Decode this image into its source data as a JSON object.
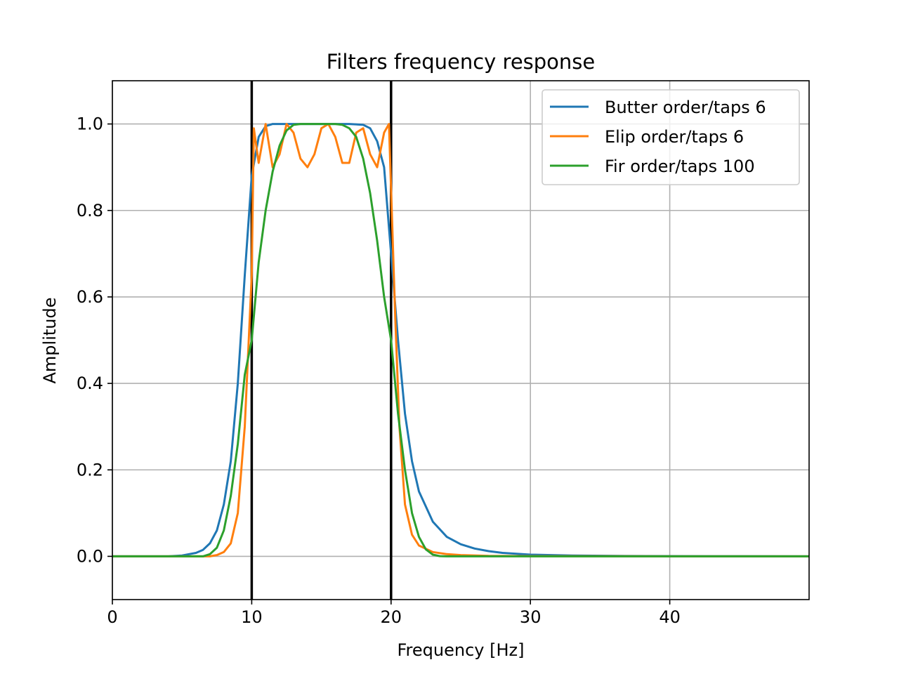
{
  "chart_data": {
    "type": "line",
    "title": "Filters frequency response",
    "xlabel": "Frequency [Hz]",
    "ylabel": "Amplitude",
    "xlim": [
      0,
      50
    ],
    "ylim": [
      -0.1,
      1.1
    ],
    "xticks": [
      0,
      10,
      20,
      30,
      40
    ],
    "xtick_labels": [
      "0",
      "10",
      "20",
      "30",
      "40"
    ],
    "yticks": [
      0.0,
      0.2,
      0.4,
      0.6,
      0.8,
      1.0
    ],
    "ytick_labels": [
      "0.0",
      "0.2",
      "0.4",
      "0.6",
      "0.8",
      "1.0"
    ],
    "grid": true,
    "legend_position": "top-right",
    "vertical_lines": [
      10,
      20
    ],
    "series": [
      {
        "name": "Butter order/taps 6",
        "color": "#1f77b4",
        "x": [
          0,
          4,
          5,
          6,
          6.5,
          7,
          7.5,
          8,
          8.5,
          9,
          9.5,
          10,
          10.5,
          11,
          11.5,
          12,
          13,
          14,
          15,
          16,
          17,
          18,
          18.5,
          19,
          19.5,
          20,
          20.5,
          21,
          21.5,
          22,
          23,
          24,
          25,
          26,
          27,
          28,
          30,
          33,
          36,
          40,
          45,
          50
        ],
        "y": [
          0,
          0,
          0.002,
          0.008,
          0.015,
          0.03,
          0.06,
          0.12,
          0.22,
          0.4,
          0.65,
          0.88,
          0.97,
          0.995,
          1.0,
          1.0,
          1.0,
          1.0,
          1.0,
          1.0,
          1.0,
          0.998,
          0.99,
          0.96,
          0.9,
          0.7,
          0.5,
          0.33,
          0.22,
          0.15,
          0.08,
          0.045,
          0.028,
          0.018,
          0.012,
          0.008,
          0.004,
          0.002,
          0.001,
          0.0005,
          0.0002,
          0
        ]
      },
      {
        "name": "Elip order/taps 6",
        "color": "#ff7f0e",
        "x": [
          0,
          7,
          7.5,
          8,
          8.5,
          9,
          9.5,
          10,
          10.15,
          10.5,
          11,
          11.5,
          12,
          12.5,
          13,
          13.5,
          14,
          14.5,
          15,
          15.5,
          16,
          16.5,
          17,
          17.5,
          18,
          18.5,
          19,
          19.5,
          19.85,
          20,
          20.3,
          20.6,
          21,
          21.5,
          22,
          23,
          24,
          25,
          27,
          30,
          40,
          50
        ],
        "y": [
          0,
          0,
          0.003,
          0.01,
          0.03,
          0.1,
          0.3,
          0.65,
          0.99,
          0.91,
          1.0,
          0.9,
          0.93,
          1.0,
          0.98,
          0.92,
          0.9,
          0.93,
          0.99,
          1.0,
          0.97,
          0.91,
          0.91,
          0.98,
          0.99,
          0.93,
          0.9,
          0.98,
          1.0,
          0.85,
          0.55,
          0.3,
          0.12,
          0.05,
          0.025,
          0.01,
          0.005,
          0.003,
          0.001,
          0.0005,
          0,
          0
        ]
      },
      {
        "name": "Fir order/taps 100",
        "color": "#2ca02c",
        "x": [
          0,
          6.5,
          7,
          7.5,
          8,
          8.5,
          9,
          9.5,
          10,
          10.5,
          11,
          11.5,
          12,
          12.5,
          13,
          13.5,
          14,
          15,
          16,
          16.5,
          17,
          17.5,
          18,
          18.5,
          19,
          19.5,
          20,
          20.5,
          21,
          21.5,
          22,
          22.5,
          23,
          23.5,
          24,
          30,
          40,
          50
        ],
        "y": [
          0,
          0,
          0.005,
          0.02,
          0.06,
          0.14,
          0.26,
          0.42,
          0.5,
          0.68,
          0.8,
          0.89,
          0.95,
          0.985,
          0.998,
          1.0,
          1.0,
          1.0,
          1.0,
          0.998,
          0.99,
          0.97,
          0.92,
          0.84,
          0.73,
          0.6,
          0.5,
          0.33,
          0.2,
          0.1,
          0.045,
          0.016,
          0.004,
          0.0005,
          0,
          0,
          0,
          0
        ]
      }
    ]
  }
}
